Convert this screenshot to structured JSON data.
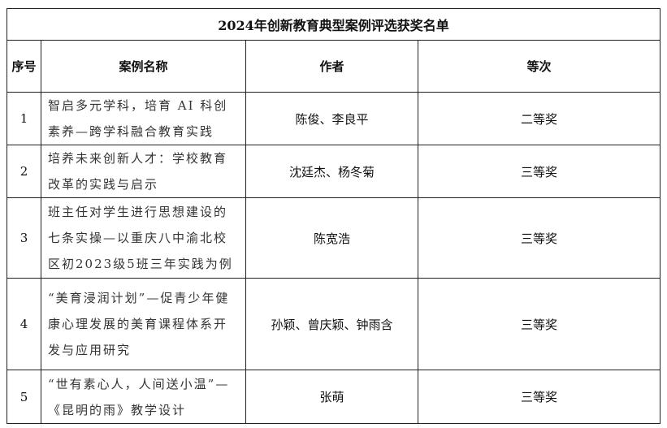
{
  "title": "2024年创新教育典型案例评选获奖名单",
  "headers": [
    "序号",
    "案例名称",
    "作者",
    "等次"
  ],
  "rows": [
    {
      "no": "1",
      "name": "智启多元学科，培育 AI 科创素养—跨学科融合教育实践",
      "author": "陈俊、李良平",
      "rank": "二等奖"
    },
    {
      "no": "2",
      "name": "培养未来创新人才：学校教育改革的实践与启示",
      "author": "沈廷杰、杨冬菊",
      "rank": "三等奖"
    },
    {
      "no": "3",
      "name": "班主任对学生进行思想建设的七条实操—以重庆八中渝北校区初2023级5班三年实践为例",
      "author": "陈宽浩",
      "rank": "三等奖"
    },
    {
      "no": "4",
      "name": "“美育浸润计划”—促青少年健康心理发展的美育课程体系开发与应用研究",
      "author": "孙颖、曾庆颖、钟雨含",
      "rank": "三等奖"
    },
    {
      "no": "5",
      "name": "“世有素心人，人间送小温”—《昆明的雨》教学设计",
      "author": "张萌",
      "rank": "三等奖"
    }
  ]
}
